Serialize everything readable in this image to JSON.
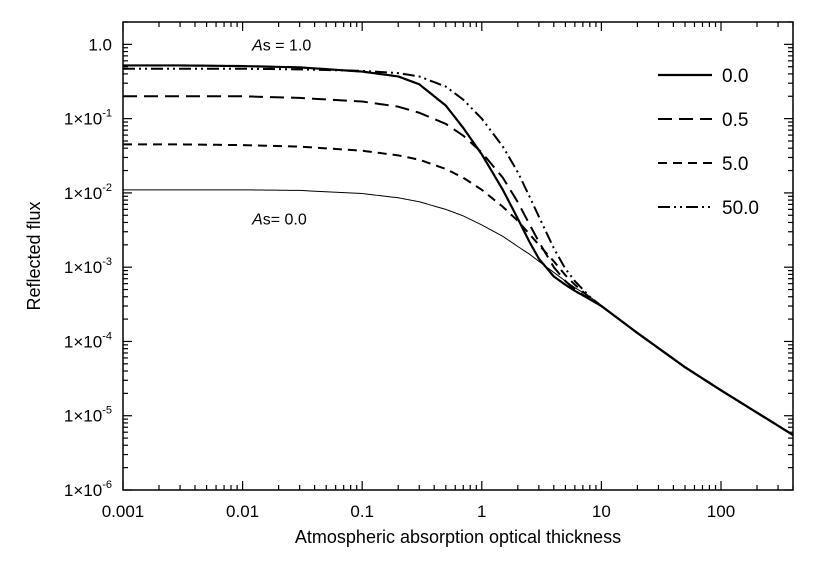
{
  "chart_data": {
    "type": "line",
    "title": "",
    "xlabel": "Atmospheric absorption optical thickness",
    "ylabel": "Reflected flux",
    "x_scale": "log",
    "y_scale": "log",
    "xlim": [
      0.001,
      400
    ],
    "ylim": [
      1e-06,
      2
    ],
    "grid": false,
    "legend_position": "top-right",
    "x_ticks": [
      {
        "value": 0.001,
        "label": "0.001"
      },
      {
        "value": 0.01,
        "label": "0.01"
      },
      {
        "value": 0.1,
        "label": "0.1"
      },
      {
        "value": 1,
        "label": "1"
      },
      {
        "value": 10,
        "label": "10"
      },
      {
        "value": 100,
        "label": "100"
      }
    ],
    "y_ticks": [
      {
        "value": 1,
        "mantissa": "1.0",
        "exp": ""
      },
      {
        "value": 0.1,
        "mantissa": "1×10",
        "exp": "-1"
      },
      {
        "value": 0.01,
        "mantissa": "1×10",
        "exp": "-2"
      },
      {
        "value": 0.001,
        "mantissa": "1×10",
        "exp": "-3"
      },
      {
        "value": 0.0001,
        "mantissa": "1×10",
        "exp": "-4"
      },
      {
        "value": 1e-05,
        "mantissa": "1×10",
        "exp": "-5"
      },
      {
        "value": 1e-06,
        "mantissa": "1×10",
        "exp": "-6"
      }
    ],
    "x": [
      0.001,
      0.003,
      0.01,
      0.03,
      0.1,
      0.2,
      0.3,
      0.5,
      0.7,
      1,
      1.5,
      2,
      2.5,
      3,
      4,
      5,
      6,
      8,
      10,
      20,
      50,
      100,
      200,
      400
    ],
    "series": [
      {
        "name": "0.0",
        "dash": "",
        "width": 2.2,
        "values": [
          0.52,
          0.52,
          0.51,
          0.49,
          0.43,
          0.37,
          0.29,
          0.15,
          0.075,
          0.033,
          0.011,
          0.0045,
          0.0022,
          0.0013,
          0.00075,
          0.00058,
          0.00048,
          0.00037,
          0.0003,
          0.00013,
          4.5e-05,
          2.2e-05,
          1.1e-05,
          5.5e-06
        ]
      },
      {
        "name": "0.5",
        "dash": "14,7",
        "width": 2,
        "values": [
          0.2,
          0.2,
          0.2,
          0.19,
          0.17,
          0.145,
          0.12,
          0.085,
          0.059,
          0.035,
          0.016,
          0.0075,
          0.0038,
          0.0022,
          0.001,
          0.00065,
          0.0005,
          0.00037,
          0.0003,
          0.00013,
          4.5e-05,
          2.2e-05,
          1.1e-05,
          5.5e-06
        ]
      },
      {
        "name": "5.0",
        "dash": "9,6",
        "width": 2,
        "values": [
          0.045,
          0.045,
          0.044,
          0.042,
          0.037,
          0.032,
          0.028,
          0.021,
          0.016,
          0.011,
          0.0065,
          0.0042,
          0.0028,
          0.002,
          0.0012,
          0.00078,
          0.00058,
          0.00039,
          0.0003,
          0.00013,
          4.5e-05,
          2.2e-05,
          1.1e-05,
          5.5e-06
        ]
      },
      {
        "name": "50.0",
        "dash": "12,4,2,4,2,4",
        "width": 2,
        "values": [
          0.47,
          0.47,
          0.47,
          0.46,
          0.44,
          0.41,
          0.37,
          0.27,
          0.18,
          0.1,
          0.042,
          0.019,
          0.009,
          0.0048,
          0.0018,
          0.00095,
          0.00065,
          0.0004,
          0.0003,
          0.00013,
          4.5e-05,
          2.2e-05,
          1.1e-05,
          5.5e-06
        ]
      },
      {
        "name": "As=0.0 baseline",
        "dash": "",
        "width": 1,
        "values": [
          0.011,
          0.011,
          0.011,
          0.0108,
          0.0098,
          0.0086,
          0.0076,
          0.006,
          0.0049,
          0.0037,
          0.0026,
          0.0019,
          0.0015,
          0.0012,
          0.00085,
          0.00065,
          0.00053,
          0.0004,
          0.0003,
          0.00013,
          4.5e-05,
          2.2e-05,
          1.1e-05,
          5.5e-06
        ]
      }
    ],
    "legend": [
      "0.0",
      "0.5",
      "5.0",
      "50.0"
    ],
    "annotations": [
      {
        "italic": "A",
        "rest": "s = 1.0",
        "x": 0.012,
        "y": 1.0
      },
      {
        "italic": "A",
        "rest": "s= 0.0",
        "x": 0.012,
        "y": 0.0045
      }
    ]
  }
}
